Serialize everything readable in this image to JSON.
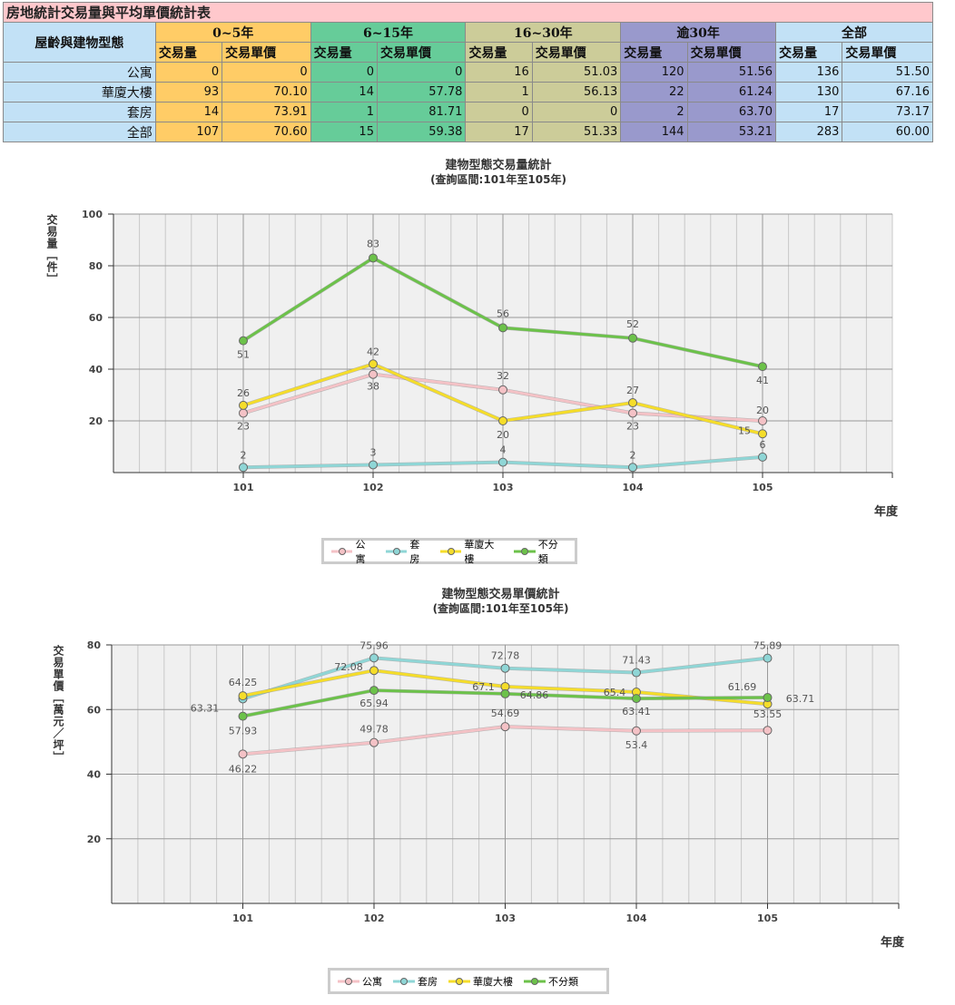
{
  "table": {
    "title": "房地統計交易量與平均單價統計表",
    "corner": "屋齡與建物型態",
    "groups": [
      "0~5年",
      "6~15年",
      "16~30年",
      "逾30年",
      "全部"
    ],
    "sub": [
      "交易量",
      "交易單價"
    ],
    "rows": [
      {
        "label": "公寓",
        "values": [
          "0",
          "0",
          "0",
          "0",
          "16",
          "51.03",
          "120",
          "51.56",
          "136",
          "51.50"
        ]
      },
      {
        "label": "華廈大樓",
        "values": [
          "93",
          "70.10",
          "14",
          "57.78",
          "1",
          "56.13",
          "22",
          "61.24",
          "130",
          "67.16"
        ]
      },
      {
        "label": "套房",
        "values": [
          "14",
          "73.91",
          "1",
          "81.71",
          "0",
          "0",
          "2",
          "63.70",
          "17",
          "73.17"
        ]
      },
      {
        "label": "全部",
        "values": [
          "107",
          "70.60",
          "15",
          "59.38",
          "17",
          "51.33",
          "144",
          "53.21",
          "283",
          "60.00"
        ]
      }
    ]
  },
  "chart_data": [
    {
      "type": "line",
      "title": "建物型態交易量統計",
      "subtitle": "(查詢區間:101年至105年)",
      "xlabel": "年度",
      "ylabel": "交易量［件］",
      "x": [
        101,
        102,
        103,
        104,
        105
      ],
      "xlim": [
        100,
        106
      ],
      "ylim": [
        0,
        100
      ],
      "yticks": [
        20,
        40,
        60,
        80,
        100
      ],
      "series": [
        {
          "name": "公寓",
          "color": "#f4c2c6",
          "values": [
            23,
            38,
            32,
            23,
            20
          ]
        },
        {
          "name": "套房",
          "color": "#8fd6d6",
          "values": [
            2,
            3,
            4,
            2,
            6
          ]
        },
        {
          "name": "華廈大樓",
          "color": "#f5dd2a",
          "values": [
            26,
            42,
            20,
            27,
            15
          ]
        },
        {
          "name": "不分類",
          "color": "#6cc24a",
          "values": [
            51,
            83,
            56,
            52,
            41
          ]
        }
      ],
      "legend": "bottom"
    },
    {
      "type": "line",
      "title": "建物型態交易單價統計",
      "subtitle": "(查詢區間:101年至105年)",
      "xlabel": "年度",
      "ylabel": "交易單價［萬元／坪］",
      "x": [
        101,
        102,
        103,
        104,
        105
      ],
      "xlim": [
        100,
        106
      ],
      "ylim": [
        0,
        80
      ],
      "yticks": [
        20,
        40,
        60,
        80
      ],
      "series": [
        {
          "name": "公寓",
          "color": "#f4c2c6",
          "values": [
            46.22,
            49.78,
            54.69,
            53.4,
            53.55
          ]
        },
        {
          "name": "套房",
          "color": "#8fd6d6",
          "values": [
            63.31,
            75.96,
            72.78,
            71.43,
            75.89
          ]
        },
        {
          "name": "華廈大樓",
          "color": "#f5dd2a",
          "values": [
            64.25,
            72.08,
            67.1,
            65.4,
            61.69
          ]
        },
        {
          "name": "不分類",
          "color": "#6cc24a",
          "values": [
            57.93,
            65.94,
            64.86,
            63.41,
            63.71
          ]
        }
      ],
      "legend": "bottom"
    }
  ]
}
